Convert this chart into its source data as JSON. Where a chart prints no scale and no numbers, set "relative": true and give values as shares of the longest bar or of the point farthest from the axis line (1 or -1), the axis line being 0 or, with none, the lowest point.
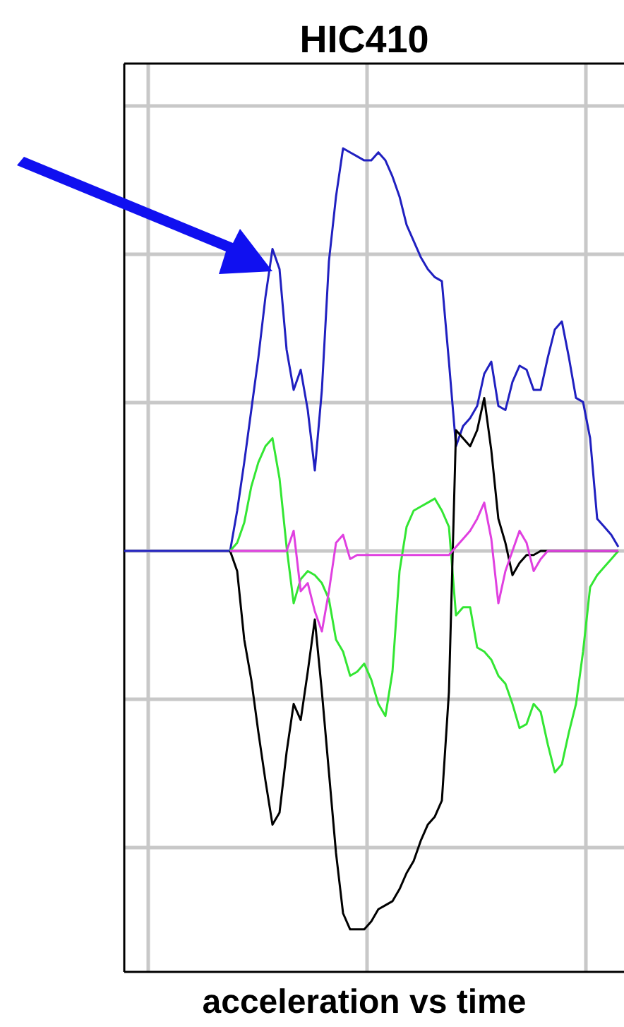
{
  "chart_data": {
    "type": "line",
    "title": "HIC410",
    "xlabel": "acceleration vs time",
    "relative": true,
    "grid": true,
    "marker": "none",
    "line_style": "solid",
    "categories": [
      null,
      null,
      null,
      null,
      null,
      null,
      null,
      null,
      null,
      null,
      null,
      null,
      null,
      null,
      null,
      null,
      null,
      null,
      null,
      null,
      null,
      null,
      null,
      null,
      null,
      null,
      null,
      null,
      null,
      null,
      null,
      null,
      null,
      null,
      null,
      null,
      null,
      null,
      null,
      null,
      null,
      null,
      null,
      null,
      null,
      null,
      null,
      null,
      null,
      null,
      null,
      null,
      null,
      null,
      null,
      null,
      null,
      null,
      null,
      null,
      null,
      null,
      null,
      null,
      null,
      null,
      null,
      null,
      null,
      null,
      null
    ],
    "series": [
      {
        "color": "#2020c0",
        "values": [
          0,
          0,
          0,
          0,
          0,
          0,
          0,
          0,
          0,
          0,
          0,
          0,
          0,
          0,
          0,
          0,
          0.1,
          0.22,
          0.35,
          0.48,
          0.63,
          0.75,
          0.7,
          0.5,
          0.4,
          0.45,
          0.35,
          0.2,
          0.4,
          0.72,
          0.88,
          1,
          0.99,
          0.98,
          0.97,
          0.97,
          0.99,
          0.97,
          0.93,
          0.88,
          0.81,
          0.77,
          0.73,
          0.7,
          0.68,
          0.67,
          0.47,
          0.26,
          0.31,
          0.33,
          0.36,
          0.44,
          0.47,
          0.36,
          0.35,
          0.42,
          0.46,
          0.45,
          0.4,
          0.4,
          0.48,
          0.55,
          0.57,
          0.48,
          0.38,
          0.37,
          0.28,
          0.08,
          0.06,
          0.04,
          0.01
        ]
      },
      {
        "color": "#33e633",
        "values": [
          null,
          null,
          null,
          null,
          null,
          null,
          null,
          null,
          null,
          null,
          null,
          null,
          null,
          null,
          null,
          0,
          0.02,
          0.07,
          0.16,
          0.22,
          0.26,
          0.28,
          0.18,
          0.01,
          -0.13,
          -0.07,
          -0.05,
          -0.06,
          -0.08,
          -0.12,
          -0.22,
          -0.25,
          -0.31,
          -0.3,
          -0.28,
          -0.32,
          -0.38,
          -0.41,
          -0.3,
          -0.05,
          0.06,
          0.1,
          0.11,
          0.12,
          0.13,
          0.1,
          0.06,
          -0.16,
          -0.14,
          -0.14,
          -0.24,
          -0.25,
          -0.27,
          -0.31,
          -0.33,
          -0.38,
          -0.44,
          -0.43,
          -0.38,
          -0.4,
          -0.48,
          -0.55,
          -0.53,
          -0.45,
          -0.38,
          -0.25,
          -0.09,
          -0.06,
          -0.04,
          -0.02,
          0
        ]
      },
      {
        "color": "#000000",
        "values": [
          null,
          null,
          null,
          null,
          null,
          null,
          null,
          null,
          null,
          null,
          null,
          null,
          null,
          null,
          null,
          0,
          -0.05,
          -0.22,
          -0.32,
          -0.45,
          -0.57,
          -0.68,
          -0.65,
          -0.5,
          -0.38,
          -0.42,
          -0.3,
          -0.17,
          -0.35,
          -0.55,
          -0.75,
          -0.9,
          -0.94,
          -0.94,
          -0.94,
          -0.92,
          -0.89,
          -0.88,
          -0.87,
          -0.84,
          -0.8,
          -0.77,
          -0.72,
          -0.68,
          -0.66,
          -0.62,
          -0.35,
          0.3,
          0.28,
          0.26,
          0.3,
          0.38,
          0.25,
          0.08,
          0.02,
          -0.06,
          -0.03,
          -0.01,
          -0.01,
          0,
          0,
          0,
          0,
          0,
          0,
          0,
          0,
          0,
          0,
          0,
          0
        ]
      },
      {
        "color": "#e040e0",
        "values": [
          null,
          null,
          null,
          null,
          null,
          null,
          null,
          null,
          null,
          null,
          null,
          null,
          null,
          null,
          null,
          0,
          0,
          0,
          0,
          0,
          0,
          0,
          0,
          0,
          0.05,
          -0.1,
          -0.08,
          -0.15,
          -0.2,
          -0.1,
          0.02,
          0.04,
          -0.02,
          -0.01,
          -0.01,
          -0.01,
          -0.01,
          -0.01,
          -0.01,
          -0.01,
          -0.01,
          -0.01,
          -0.01,
          -0.01,
          -0.01,
          -0.01,
          -0.01,
          0.01,
          0.03,
          0.05,
          0.08,
          0.12,
          0.03,
          -0.13,
          -0.05,
          0,
          0.05,
          0.02,
          -0.05,
          -0.02,
          0,
          0,
          0,
          0,
          0,
          0,
          0,
          0,
          0,
          0,
          0
        ]
      }
    ]
  }
}
